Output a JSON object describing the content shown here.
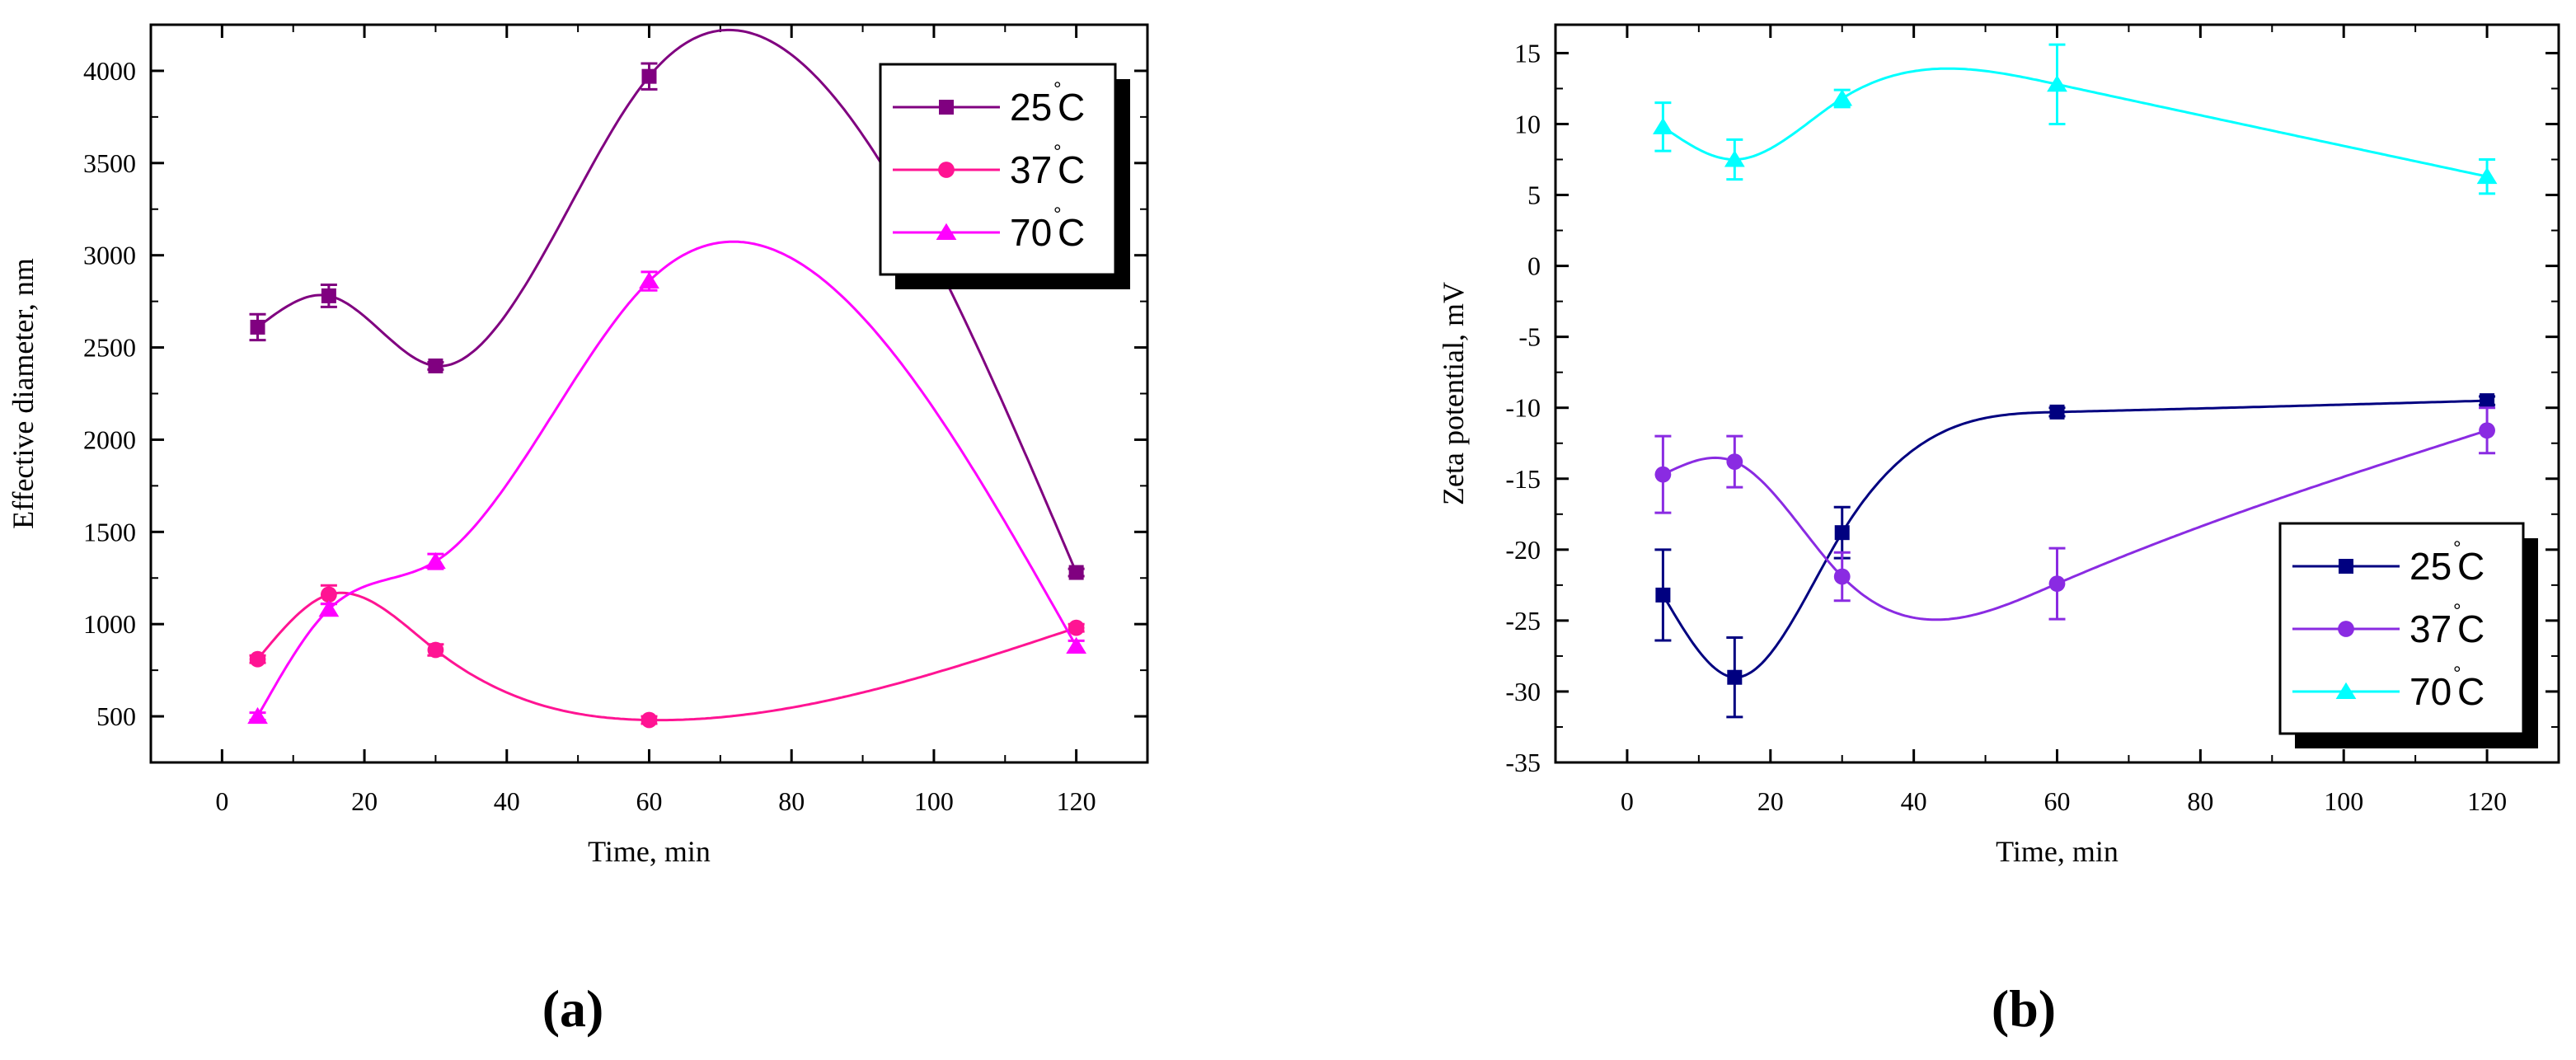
{
  "chart_data": [
    {
      "id": "a",
      "type": "scatter",
      "panel_label": "(a)",
      "title": "",
      "xlabel": "Time, min",
      "ylabel": "Effective diameter, nm",
      "xlim": [
        -10,
        130
      ],
      "ylim": [
        250,
        4250
      ],
      "xticks": [
        0,
        20,
        40,
        60,
        80,
        100,
        120
      ],
      "yticks": [
        500,
        1000,
        1500,
        2000,
        2500,
        3000,
        3500,
        4000
      ],
      "grid": false,
      "legend_position": "top-right",
      "series": [
        {
          "name": "25°C",
          "temp": "25",
          "unit": "C",
          "color": "#800080",
          "marker": "square",
          "x": [
            5,
            15,
            30,
            60,
            120
          ],
          "values": [
            2610,
            2780,
            2400,
            3970,
            1280
          ],
          "errors": [
            70,
            60,
            20,
            70,
            20
          ]
        },
        {
          "name": "37°C",
          "temp": "37",
          "unit": "C",
          "color": "#ff1493",
          "marker": "circle",
          "x": [
            5,
            15,
            30,
            60,
            120
          ],
          "values": [
            810,
            1160,
            860,
            480,
            980
          ],
          "errors": [
            20,
            50,
            30,
            20,
            20
          ]
        },
        {
          "name": "70°C",
          "temp": "70",
          "unit": "C",
          "color": "#ff00ff",
          "marker": "triangle",
          "x": [
            5,
            15,
            30,
            60,
            120
          ],
          "values": [
            500,
            1080,
            1340,
            2860,
            880
          ],
          "errors": [
            20,
            30,
            40,
            50,
            30
          ]
        }
      ]
    },
    {
      "id": "b",
      "type": "scatter",
      "panel_label": "(b)",
      "title": "",
      "xlabel": "Time, min",
      "ylabel": "Zeta potential, mV",
      "xlim": [
        -10,
        130
      ],
      "ylim": [
        -35,
        17
      ],
      "xticks": [
        0,
        20,
        40,
        60,
        80,
        100,
        120
      ],
      "yticks": [
        -35,
        -30,
        -25,
        -20,
        -15,
        -10,
        -5,
        0,
        5,
        10,
        15
      ],
      "grid": false,
      "legend_position": "bottom-right",
      "series": [
        {
          "name": "25°C",
          "temp": "25",
          "unit": "C",
          "color": "#000080",
          "marker": "square",
          "x": [
            5,
            15,
            30,
            60,
            120
          ],
          "values": [
            -23.2,
            -29.0,
            -18.8,
            -10.3,
            -9.5
          ],
          "errors": [
            3.2,
            2.8,
            1.8,
            0.3,
            0.3
          ]
        },
        {
          "name": "37°C",
          "temp": "37",
          "unit": "C",
          "color": "#8a2be2",
          "marker": "circle",
          "x": [
            5,
            15,
            30,
            60,
            120
          ],
          "values": [
            -14.7,
            -13.8,
            -21.9,
            -22.4,
            -11.6
          ],
          "errors": [
            2.7,
            1.8,
            1.7,
            2.5,
            1.6
          ]
        },
        {
          "name": "70°C",
          "temp": "70",
          "unit": "C",
          "color": "#00ffff",
          "marker": "triangle",
          "x": [
            5,
            15,
            30,
            60,
            120
          ],
          "values": [
            9.8,
            7.5,
            11.8,
            12.8,
            6.3
          ],
          "errors": [
            1.7,
            1.4,
            0.6,
            2.8,
            1.2
          ]
        }
      ]
    }
  ]
}
